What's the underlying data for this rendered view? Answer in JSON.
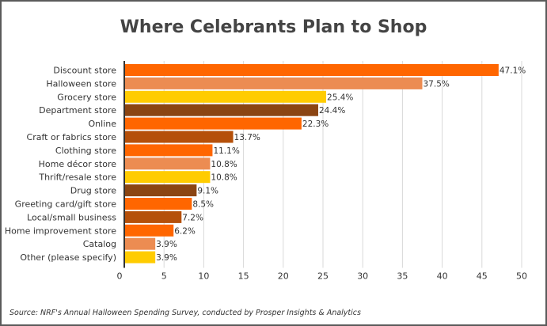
{
  "chart_data": {
    "type": "bar",
    "orientation": "horizontal",
    "title": "Where Celebrants Plan to Shop",
    "categories": [
      "Discount store",
      "Halloween store",
      "Grocery store",
      "Department store",
      "Online",
      "Craft or fabrics store",
      "Clothing store",
      "Home décor store",
      "Thrift/resale store",
      "Drug store",
      "Greeting card/gift store",
      "Local/small business",
      "Home improvement store",
      "Catalog",
      "Other (please specify)"
    ],
    "values": [
      47.1,
      37.5,
      25.4,
      24.4,
      22.3,
      13.7,
      11.1,
      10.8,
      10.8,
      9.1,
      8.5,
      7.2,
      6.2,
      3.9,
      3.9
    ],
    "value_labels": [
      "47.1%",
      "37.5%",
      "25.4%",
      "24.4%",
      "22.3%",
      "13.7%",
      "11.1%",
      "10.8%",
      "10.8%",
      "9.1%",
      "8.5%",
      "7.2%",
      "6.2%",
      "3.9%",
      "3.9%"
    ],
    "bar_colors": [
      "#ff6600",
      "#ec8c52",
      "#ffcc00",
      "#8b4513",
      "#ff6600",
      "#b5500a",
      "#ff6600",
      "#ec8c52",
      "#ffcc00",
      "#8b4513",
      "#ff6600",
      "#b5500a",
      "#ff6600",
      "#ec8c52",
      "#ffcc00"
    ],
    "xlim": [
      0,
      50
    ],
    "xticks": [
      "0",
      "5",
      "10",
      "15",
      "20",
      "25",
      "30",
      "35",
      "40",
      "45",
      "50"
    ],
    "grid": "vertical",
    "legend": "none"
  },
  "source": "Source: NRF's Annual Halloween Spending Survey, conducted by Prosper Insights & Analytics"
}
